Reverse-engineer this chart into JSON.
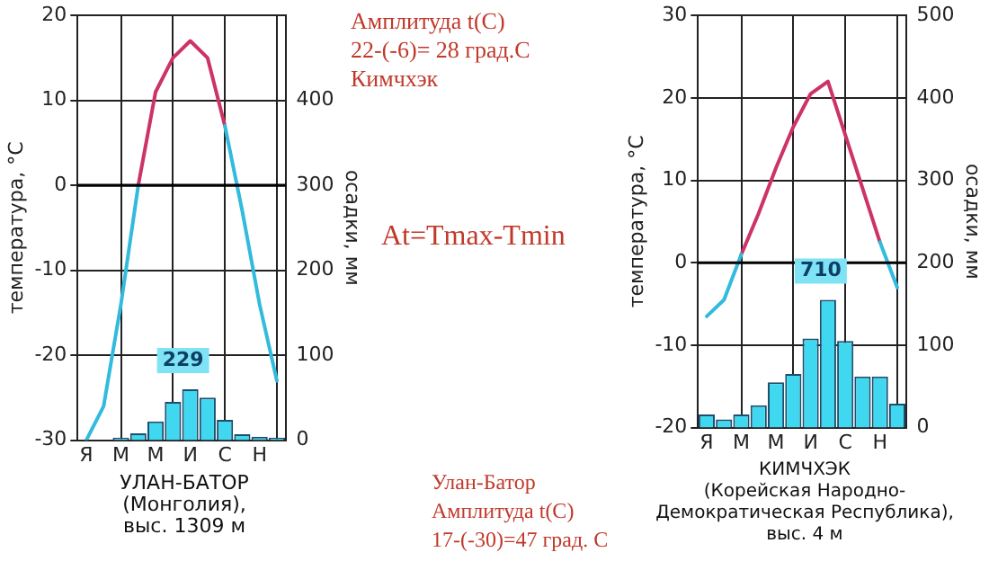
{
  "chart_data": [
    {
      "type": "line",
      "xlabel": "УЛАН-БАТОР\n(Монголия),\nвыс. 1309 м",
      "ylabel": "температура, °С",
      "y2label": "осадки, мм",
      "categories": [
        "Я",
        null,
        "М",
        null,
        "М",
        null,
        "И",
        null,
        "С",
        null,
        "Н",
        null
      ],
      "series": [
        {
          "color": "#33bbdd",
          "values": [
            -30,
            -26,
            -14,
            0,
            null,
            null,
            null,
            null,
            7,
            -3,
            -14,
            -23
          ]
        },
        {
          "color": "#cc3366",
          "values": [
            null,
            null,
            null,
            0,
            11,
            15,
            17,
            15,
            7,
            null,
            null,
            null
          ]
        },
        {
          "type": "bar",
          "axis": "y2",
          "color": "#40d8f0",
          "values": [
            null,
            null,
            3,
            8,
            22,
            45,
            60,
            50,
            24,
            7,
            4,
            3
          ]
        }
      ],
      "ylim": [
        -30,
        20
      ],
      "yticks": [
        -30,
        -20,
        -10,
        0,
        10,
        20
      ],
      "y2lim": [
        0,
        500
      ],
      "y2ticks": [
        0,
        100,
        200,
        300,
        400
      ],
      "grid": true,
      "legend": false,
      "ref_lines": [
        {
          "axis": "y",
          "value": 0,
          "color": "#000000"
        }
      ],
      "annotations": [
        "229",
        "Улан-Батор\nАмплитуда t(C)\n17-(-30)=47 град. С",
        "At=Tmax-Tmin"
      ]
    },
    {
      "type": "line",
      "xlabel": "КИМЧХЭК\n(Корейская Народно-\nДемократическая Республика),\nвыс. 4 м",
      "ylabel": "температура, °С",
      "y2label": "осадки, мм",
      "categories": [
        "Я",
        null,
        "М",
        null,
        "М",
        null,
        "И",
        null,
        "С",
        null,
        "Н",
        null
      ],
      "series": [
        {
          "color": "#33bbdd",
          "values": [
            -6.5,
            -4.5,
            1,
            null,
            null,
            null,
            null,
            null,
            null,
            null,
            2.5,
            -3
          ]
        },
        {
          "color": "#cc3366",
          "values": [
            null,
            null,
            1,
            6,
            11.5,
            16.5,
            20.5,
            22,
            15.5,
            9,
            2.5,
            null
          ]
        },
        {
          "type": "bar",
          "axis": "y2",
          "color": "#40d8f0",
          "values": [
            16,
            10,
            16,
            27,
            55,
            65,
            108,
            155,
            105,
            62,
            62,
            29
          ]
        }
      ],
      "ylim": [
        -20,
        30
      ],
      "yticks": [
        -20,
        -10,
        0,
        10,
        20,
        30
      ],
      "y2lim": [
        0,
        500
      ],
      "y2ticks": [
        0,
        100,
        200,
        300,
        400,
        500
      ],
      "grid": true,
      "legend": false,
      "ref_lines": [
        {
          "axis": "y",
          "value": 0,
          "color": "#000000"
        }
      ],
      "annotations": [
        "710",
        "Амплитуда t(C)\n22-(-6)= 28 град.С\nКимчхэк"
      ]
    }
  ]
}
